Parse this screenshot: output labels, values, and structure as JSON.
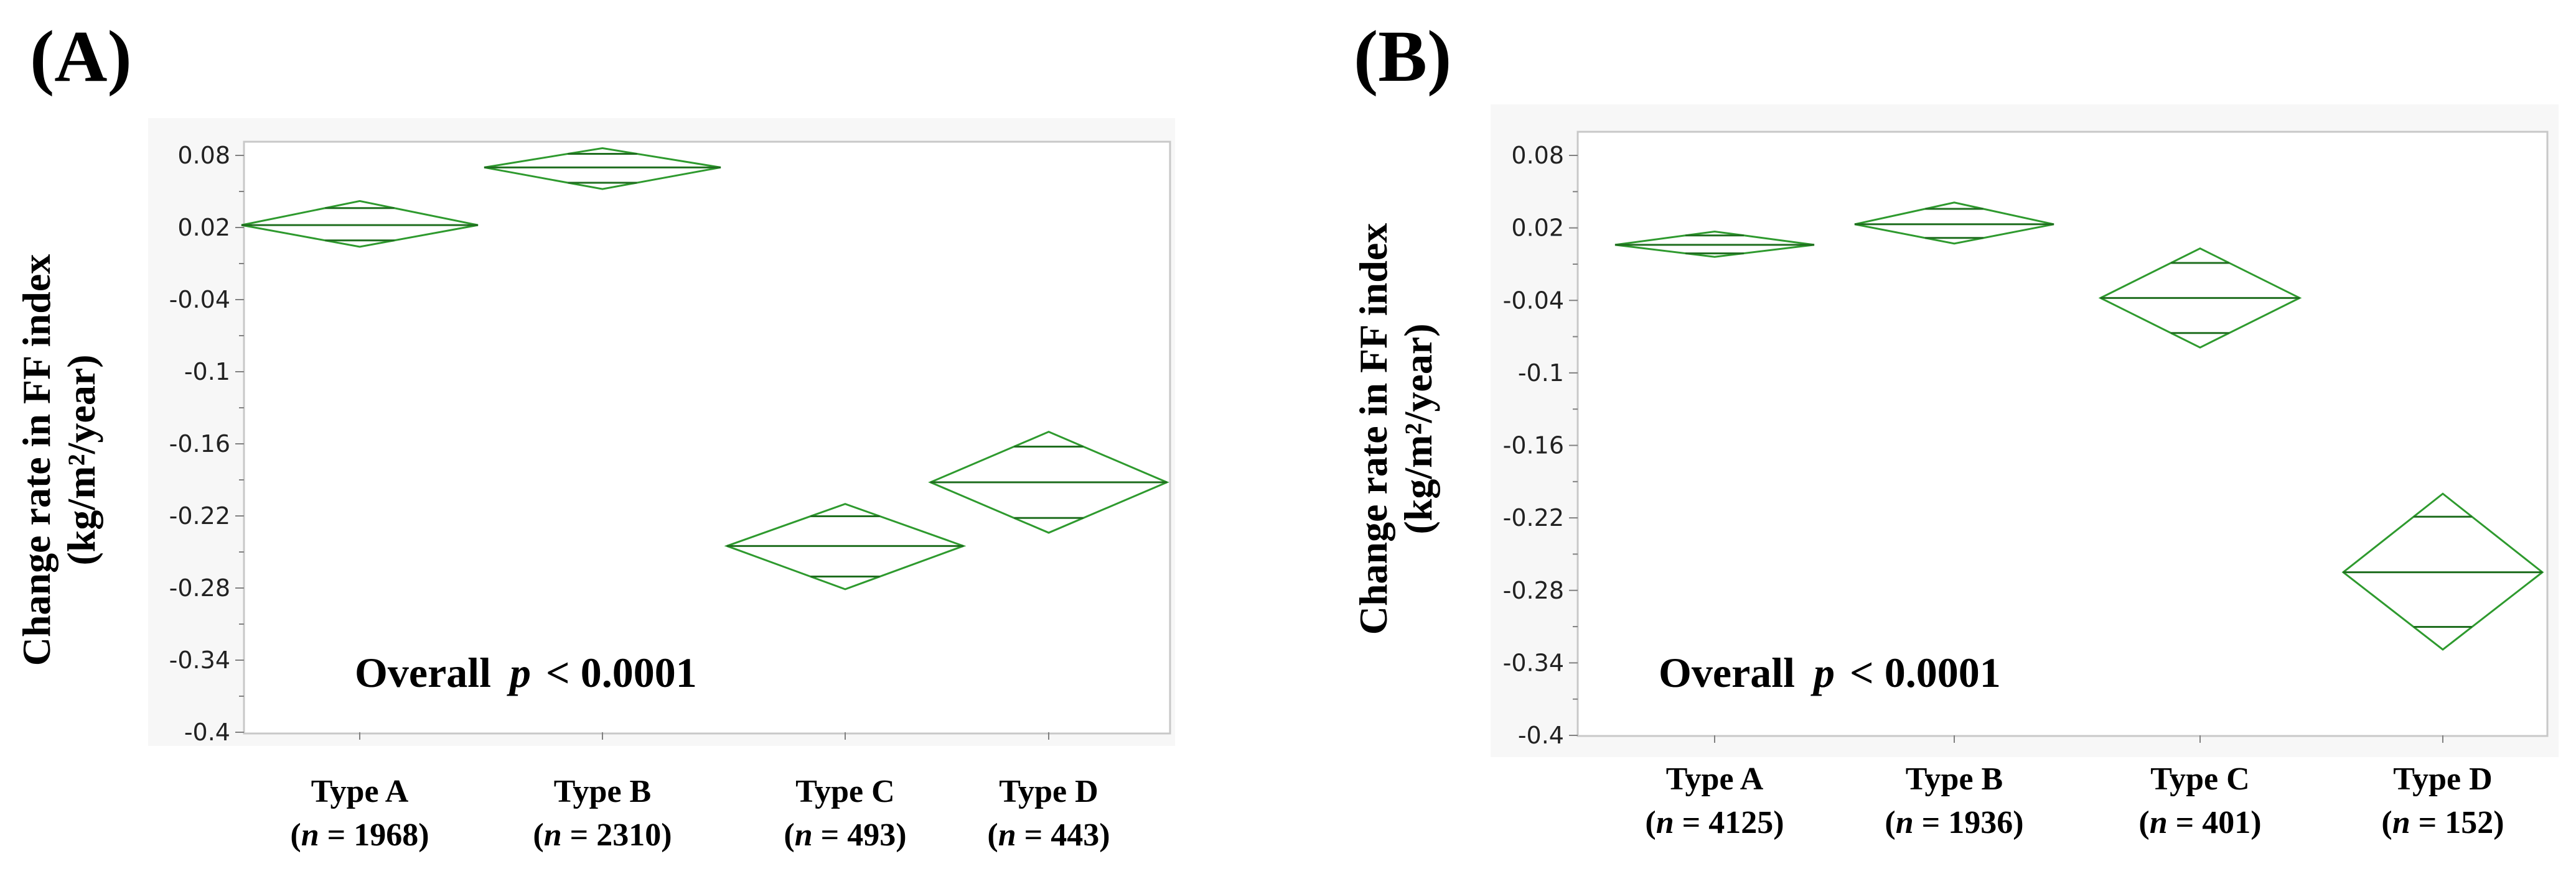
{
  "chart_data": [
    {
      "type": "diamond",
      "panel": "(A)",
      "ylabel_line1": "Change rate in FF index",
      "ylabel_line2": "(kg/m²/year)",
      "ylim": [
        -0.4,
        0.1
      ],
      "yticks": [
        "0.08",
        "0.02",
        "-0.04",
        "-0.1",
        "-0.16",
        "-0.22",
        "-0.28",
        "-0.34",
        "-0.4"
      ],
      "ytick_values": [
        0.08,
        0.02,
        -0.04,
        -0.1,
        -0.16,
        -0.22,
        -0.28,
        -0.34,
        -0.4
      ],
      "categories": [
        "Type A",
        "Type B",
        "Type C",
        "Type D"
      ],
      "n_prefix": "n",
      "n_labels": [
        "= 1968)",
        "= 2310)",
        "= 493)",
        "= 443)"
      ],
      "means": [
        0.022,
        0.07,
        -0.245,
        -0.192
      ],
      "ci_upper": [
        0.042,
        0.086,
        -0.21,
        -0.15
      ],
      "ci_lower": [
        0.004,
        0.052,
        -0.281,
        -0.234
      ],
      "overall_text": "Overall",
      "overall_p": "p",
      "overall_value": "< 0.0001"
    },
    {
      "type": "diamond",
      "panel": "(B)",
      "ylabel_line1": "Change rate in FF index",
      "ylabel_line2": "(kg/m²/year)",
      "ylim": [
        -0.4,
        0.1
      ],
      "yticks": [
        "0.08",
        "0.02",
        "-0.04",
        "-0.1",
        "-0.16",
        "-0.22",
        "-0.28",
        "-0.34",
        "-0.4"
      ],
      "ytick_values": [
        0.08,
        0.02,
        -0.04,
        -0.1,
        -0.16,
        -0.22,
        -0.28,
        -0.34,
        -0.4
      ],
      "categories": [
        "Type A",
        "Type B",
        "Type C",
        "Type D"
      ],
      "n_prefix": "n",
      "n_labels": [
        "= 4125)",
        "= 1936)",
        "= 401)",
        "= 152)"
      ],
      "means": [
        0.006,
        0.023,
        -0.038,
        -0.265
      ],
      "ci_upper": [
        0.017,
        0.041,
        0.003,
        -0.2
      ],
      "ci_lower": [
        -0.004,
        0.007,
        -0.079,
        -0.329
      ],
      "overall_text": "Overall",
      "overall_p": "p",
      "overall_value": "< 0.0001"
    }
  ],
  "colors": {
    "diamond": "#2e9a2e",
    "mean_line": "#1f6e1f",
    "plot_bg": "#f7f7f7",
    "frame": "#c8c8c8",
    "axis": "#808080"
  }
}
